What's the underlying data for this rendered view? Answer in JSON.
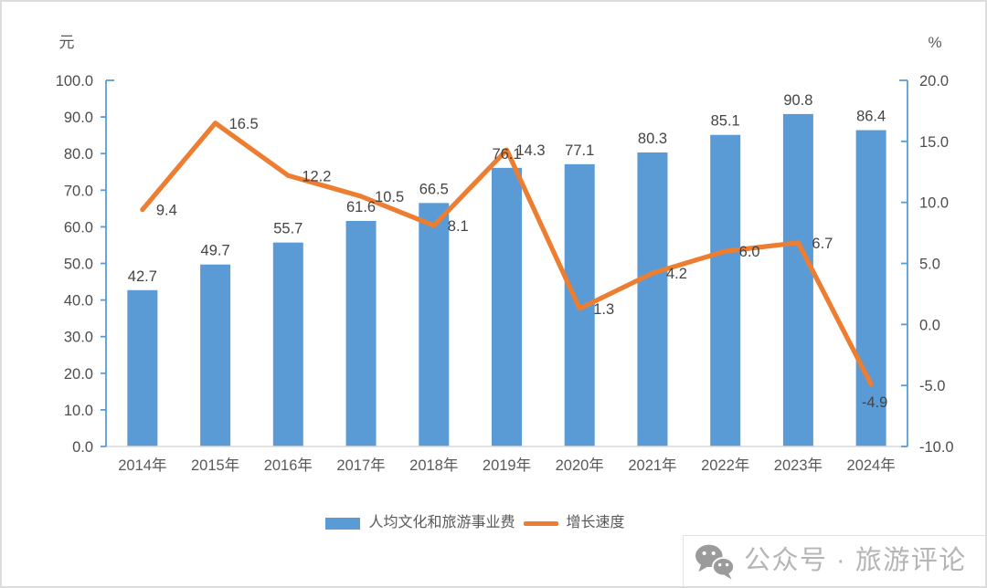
{
  "chart_data": {
    "type": "combo",
    "title": "",
    "categories": [
      "2014年",
      "2015年",
      "2016年",
      "2017年",
      "2018年",
      "2019年",
      "2020年",
      "2021年",
      "2022年",
      "2023年",
      "2024年"
    ],
    "series": [
      {
        "name": "人均文化和旅游事业费",
        "chart_type": "bar",
        "axis": "left",
        "color": "#5B9BD5",
        "values": [
          42.7,
          49.7,
          55.7,
          61.6,
          66.5,
          76.1,
          77.1,
          80.3,
          85.1,
          90.8,
          86.4
        ]
      },
      {
        "name": "增长速度",
        "chart_type": "line",
        "axis": "right",
        "color": "#ED7D31",
        "values": [
          9.4,
          16.5,
          12.2,
          10.5,
          8.1,
          14.3,
          1.3,
          4.2,
          6.0,
          6.7,
          -4.9
        ],
        "label_placement": [
          "right",
          "right",
          "right",
          "right",
          "right",
          "right",
          "right",
          "right",
          "right",
          "right",
          "below"
        ]
      }
    ],
    "left_axis": {
      "unit": "元",
      "min": 0,
      "max": 100,
      "step": 10
    },
    "right_axis": {
      "unit": "%",
      "min": -10,
      "max": 20,
      "step": 5
    },
    "grid": false,
    "legend_position": "bottom",
    "label_format": "one_decimal"
  },
  "legend": {
    "bar_label": "人均文化和旅游事业费",
    "line_label": "增长速度"
  },
  "watermark": {
    "icon": "wechat-icon",
    "text": "公众号 · 旅游评论"
  }
}
